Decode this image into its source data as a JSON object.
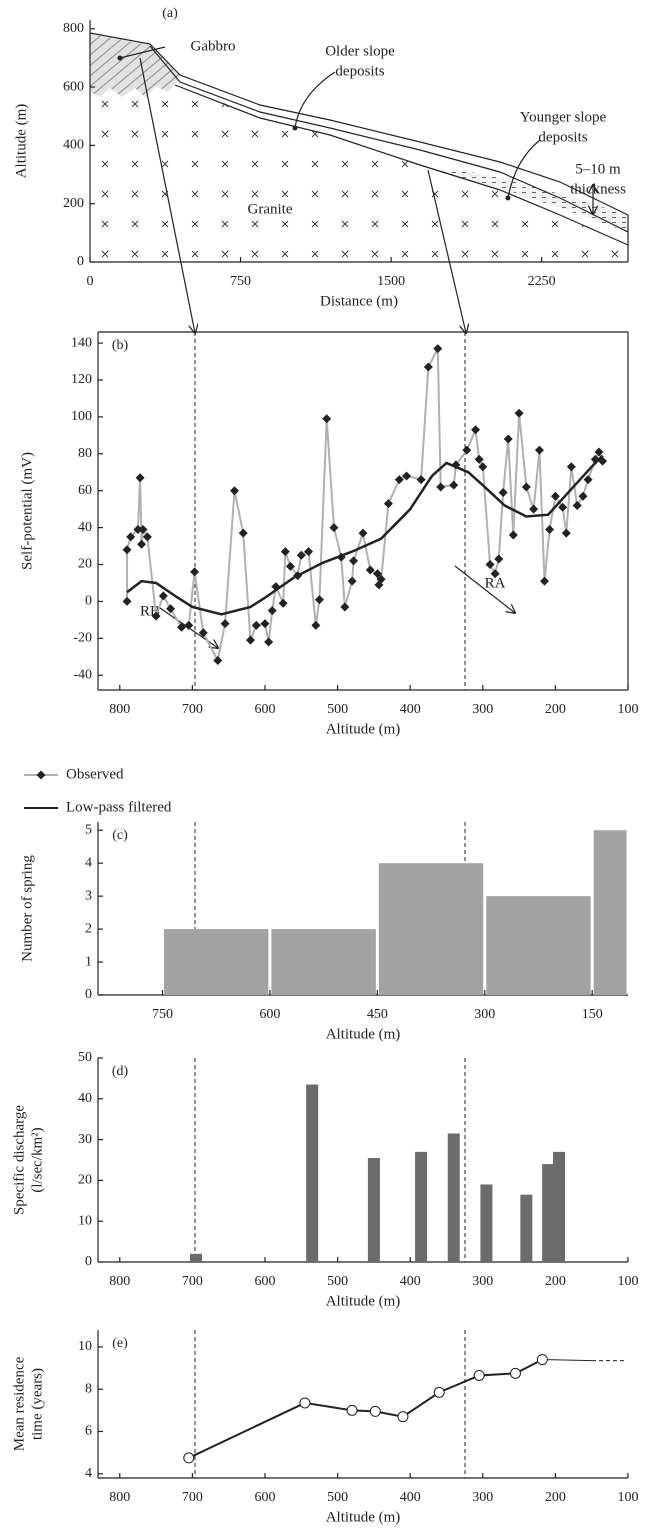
{
  "chart_data": [
    {
      "type": "cross-section",
      "label": "(a)",
      "xlabel": "Distance (m)",
      "ylabel": "Altitude (m)",
      "xlim": [
        0,
        2680
      ],
      "ylim": [
        0,
        830
      ],
      "xticks": [
        0,
        750,
        1500,
        2250
      ],
      "yticks": [
        0,
        200,
        400,
        600,
        800
      ],
      "annotations": [
        "Gabbro",
        "Older slope",
        "deposits",
        "Younger slope",
        "deposits",
        "5–10 m",
        "thickness",
        "Granite"
      ]
    },
    {
      "type": "line",
      "label": "(b)",
      "xlabel": "Altitude (m)",
      "ylabel": "Self-potential (mV)",
      "xlim": [
        830,
        100
      ],
      "ylim": [
        -48,
        146
      ],
      "xticks": [
        800,
        700,
        600,
        500,
        400,
        300,
        200,
        100
      ],
      "yticks": [
        -40,
        -20,
        0,
        20,
        40,
        60,
        80,
        100,
        120,
        140
      ],
      "annotations": [
        "RB",
        "RA"
      ],
      "series": [
        {
          "name": "Observed",
          "color": "#b0b0b0",
          "marker_color": "#222",
          "x": [
            790,
            790,
            785,
            775,
            772,
            770,
            768,
            762,
            750,
            740,
            730,
            715,
            705,
            697,
            685,
            665,
            655,
            642,
            630,
            620,
            612,
            600,
            595,
            590,
            585,
            575,
            572,
            565,
            555,
            550,
            540,
            530,
            525,
            515,
            505,
            495,
            490,
            480,
            478,
            465,
            455,
            445,
            443,
            440,
            430,
            415,
            405,
            385,
            375,
            362,
            358,
            340,
            337,
            322,
            310,
            305,
            300,
            290,
            283,
            278,
            272,
            265,
            258,
            250,
            240,
            230,
            222,
            215,
            208,
            200,
            190,
            185,
            178,
            170,
            162,
            155,
            145,
            140,
            135
          ],
          "values": [
            0,
            28,
            35,
            39,
            67,
            31,
            39,
            35,
            -8,
            3,
            -4,
            -14,
            -13,
            16,
            -17,
            -32,
            -12,
            60,
            37,
            -21,
            -13,
            -12,
            -22,
            -5,
            8,
            -1,
            27,
            19,
            14,
            25,
            27,
            -13,
            1,
            99,
            40,
            24,
            -3,
            11,
            22,
            37,
            17,
            15,
            9,
            12,
            53,
            66,
            68,
            66,
            127,
            137,
            62,
            63,
            74,
            82,
            93,
            77,
            73,
            20,
            15,
            23,
            59,
            88,
            36,
            102,
            62,
            50,
            82,
            11,
            39,
            57,
            51,
            37,
            73,
            52,
            57,
            66,
            77,
            81,
            76
          ]
        },
        {
          "name": "Low-pass filtered",
          "color": "#222",
          "x": [
            790,
            770,
            750,
            720,
            700,
            660,
            620,
            600,
            560,
            520,
            480,
            440,
            400,
            370,
            350,
            320,
            300,
            270,
            240,
            210,
            180,
            150,
            135
          ],
          "values": [
            5,
            11,
            10,
            2,
            -3,
            -7,
            -3,
            2,
            13,
            21,
            27,
            34,
            50,
            68,
            75,
            70,
            63,
            52,
            46,
            47,
            60,
            73,
            79
          ]
        }
      ]
    },
    {
      "type": "histogram",
      "label": "(c)",
      "xlabel": "Altitude (m)",
      "ylabel": "Number of spring",
      "xlim": [
        840,
        100
      ],
      "ylim": [
        0,
        5.25
      ],
      "xticks": [
        750,
        600,
        450,
        300,
        150
      ],
      "yticks": [
        0,
        1,
        2,
        3,
        4,
        5
      ],
      "color": "#a2a2a2",
      "bins": [
        750,
        600,
        450,
        300,
        150,
        100
      ],
      "values": [
        2,
        2,
        4,
        3,
        5
      ]
    },
    {
      "type": "bar",
      "label": "(d)",
      "xlabel": "Altitude (m)",
      "ylabel": [
        "Specific discharge",
        "(l/sec/km²)"
      ],
      "xlim": [
        830,
        100
      ],
      "ylim": [
        0,
        50
      ],
      "xticks": [
        800,
        700,
        600,
        500,
        400,
        300,
        200,
        100
      ],
      "yticks": [
        0,
        10,
        20,
        30,
        40,
        50
      ],
      "color": "#6b6b6b",
      "x": [
        695,
        535,
        450,
        385,
        340,
        295,
        240,
        210,
        195
      ],
      "values": [
        2,
        43.5,
        25.5,
        27,
        31.5,
        19,
        16.5,
        24,
        27
      ]
    },
    {
      "type": "line",
      "label": "(e)",
      "xlabel": "Altitude (m)",
      "ylabel": [
        "Mean residence",
        "time (years)"
      ],
      "xlim": [
        830,
        100
      ],
      "ylim": [
        3.8,
        10.8
      ],
      "xticks": [
        800,
        700,
        600,
        500,
        400,
        300,
        200,
        100
      ],
      "yticks": [
        4,
        6,
        8,
        10
      ],
      "series": [
        {
          "color": "#222",
          "marker_color": "#fff",
          "x": [
            705,
            545,
            480,
            448,
            410,
            360,
            305,
            255,
            218
          ],
          "values": [
            4.75,
            7.35,
            7.0,
            6.95,
            6.7,
            7.85,
            8.65,
            8.75,
            9.4
          ]
        }
      ]
    }
  ]
}
